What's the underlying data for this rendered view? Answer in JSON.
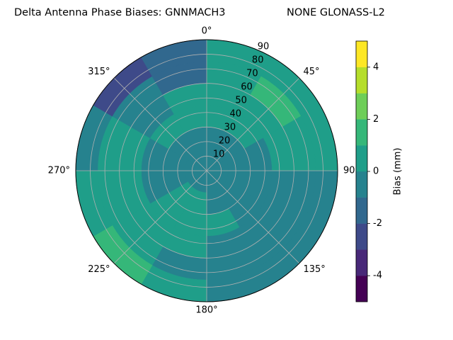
{
  "chart_data": {
    "type": "polar_contour",
    "title": "Delta Antenna Phase Biases: GNNMACH3",
    "subtitle": "NONE GLONASS-L2",
    "theta_bins": [
      0,
      30,
      60,
      90,
      120,
      150,
      180,
      210,
      240,
      270,
      300,
      330,
      360
    ],
    "r_bins": [
      0,
      15,
      30,
      45,
      60,
      75,
      90
    ],
    "z": [
      [
        -0.5,
        -0.5,
        -0.5,
        -0.5,
        -0.5,
        -0.5,
        -0.5,
        -0.5,
        -0.5,
        -0.5,
        -0.5,
        -0.5
      ],
      [
        -0.5,
        -0.5,
        -0.5,
        -0.5,
        -0.5,
        -0.5,
        0.5,
        0.5,
        -0.5,
        -0.5,
        -0.5,
        -0.5
      ],
      [
        0.5,
        0.5,
        -0.5,
        -0.5,
        -0.5,
        0.5,
        0.5,
        0.5,
        -0.5,
        -0.5,
        0.5,
        0.5
      ],
      [
        0.5,
        0.5,
        0.5,
        -0.5,
        -0.5,
        -0.5,
        0.5,
        0.5,
        0.5,
        0.5,
        -0.5,
        0.5
      ],
      [
        0.5,
        1.5,
        0.5,
        -0.5,
        -0.5,
        -0.5,
        -0.5,
        0.5,
        0.5,
        0.5,
        -0.5,
        -1.5
      ],
      [
        0.5,
        0.5,
        0.5,
        -0.5,
        -0.5,
        -0.5,
        0.5,
        1.5,
        0.5,
        -0.5,
        -2.5,
        -1.5
      ]
    ],
    "rlim": [
      0,
      90
    ],
    "rticks": [
      10,
      20,
      30,
      40,
      50,
      60,
      70,
      80,
      90
    ],
    "thetaticks": [
      {
        "value": 0,
        "label": "0°"
      },
      {
        "value": 45,
        "label": "45°"
      },
      90,
      {
        "value": 135,
        "label": "135°"
      },
      {
        "value": 180,
        "label": "180°"
      },
      {
        "value": 225,
        "label": "225°"
      },
      {
        "value": 270,
        "label": "270°"
      },
      {
        "value": 315,
        "label": "315°"
      }
    ],
    "levels": [
      -5,
      -4,
      -3,
      -2,
      -1,
      0,
      1,
      2,
      3,
      4,
      5
    ],
    "colors": [
      "#440154",
      "#482878",
      "#3e4a89",
      "#31688e",
      "#26828e",
      "#1f9e89",
      "#35b779",
      "#6ece58",
      "#b5de2b",
      "#fde725"
    ],
    "colorbar_ticks": [
      -4,
      -2,
      0,
      2,
      4
    ],
    "colorbar_label": "Bias (mm)",
    "grid": true
  }
}
